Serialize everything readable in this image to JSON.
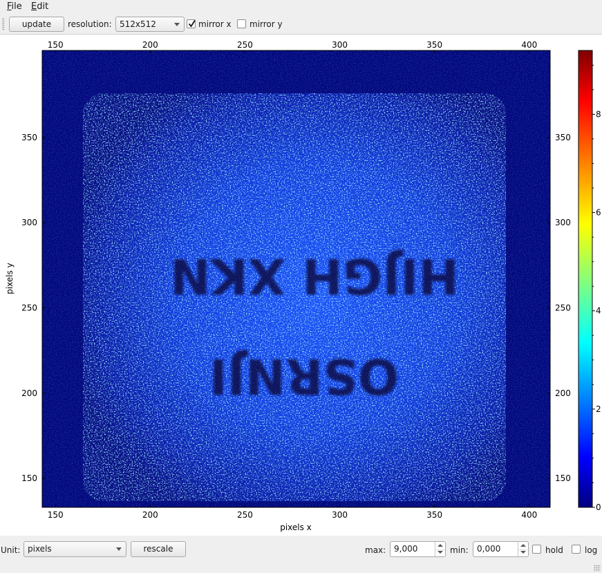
{
  "menu": {
    "file": {
      "underlined": "F",
      "rest": "ile"
    },
    "edit": {
      "underlined": "E",
      "rest": "dit"
    }
  },
  "toolbar": {
    "update_label": "update",
    "resolution_label": "resolution:",
    "resolution_value": "512x512",
    "mirror_x_label": "mirror x",
    "mirror_x_checked": true,
    "mirror_y_label": "mirror y",
    "mirror_y_checked": false
  },
  "plot": {
    "colormap": "jet",
    "xlabel": "pixels x",
    "ylabel": "pixels y",
    "x_range": [
      143,
      411
    ],
    "y_range": [
      133,
      401
    ],
    "x_ticks": [
      150,
      200,
      250,
      300,
      350,
      400
    ],
    "y_ticks": [
      150,
      200,
      250,
      300,
      350
    ],
    "image_text": [
      "HIJGH XKN",
      "OSRNJI"
    ],
    "colorbar": {
      "range": [
        0,
        9.3
      ],
      "ticks": [
        0,
        2,
        4,
        6,
        8
      ]
    }
  },
  "bottom": {
    "unit_label": "Unit:",
    "unit_value": "pixels",
    "rescale_label": "rescale",
    "max_label": "max:",
    "max_value": "9,000",
    "min_label": "min:",
    "min_value": "0,000",
    "hold_label": "hold",
    "hold_checked": false,
    "log_label": "log",
    "log_checked": false
  }
}
